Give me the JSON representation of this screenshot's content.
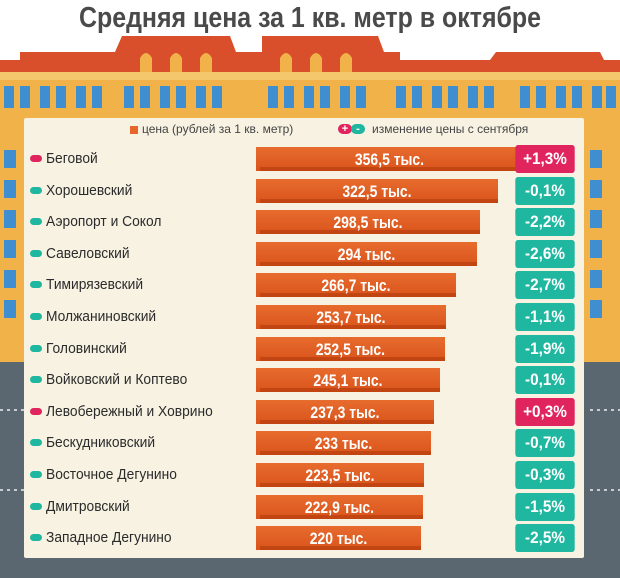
{
  "chart_data": {
    "type": "bar",
    "title": "Средняя цена за 1 кв. метр в октябре",
    "legend": {
      "price_label": "цена (рублей за 1 кв. метр)",
      "change_label": "изменение цены с сентября",
      "plus_symbol": "+",
      "minus_symbol": "-"
    },
    "categories": [
      "Беговой",
      "Хорошевский",
      "Аэропорт и Сокол",
      "Савеловский",
      "Тимирязевский",
      "Молжаниновский",
      "Головинский",
      "Войковский и Коптево",
      "Левобережный и Ховрино",
      "Бескудниковский",
      "Восточное Дегунино",
      "Дмитровский",
      "Западное Дегунино"
    ],
    "series": [
      {
        "name": "цена (рублей за 1 кв. метр)",
        "values": [
          356.5,
          322.5,
          298.5,
          294,
          266.7,
          253.7,
          252.5,
          245.1,
          237.3,
          233,
          223.5,
          222.9,
          220
        ],
        "labels": [
          "356,5",
          "322,5",
          "298,5",
          "294",
          "266,7",
          "253,7",
          "252,5",
          "245,1",
          "237,3",
          "233",
          "223,5",
          "222,9",
          "220"
        ],
        "unit": "тыс."
      },
      {
        "name": "изменение цены с сентября",
        "values": [
          1.3,
          -0.1,
          -2.2,
          -2.6,
          -2.7,
          -1.1,
          -1.9,
          -0.1,
          0.3,
          -0.7,
          -0.3,
          -1.5,
          -2.5
        ],
        "labels": [
          "+1,3%",
          "-0,1%",
          "-2,2%",
          "-2,6%",
          "-2,7%",
          "-1,1%",
          "-1,9%",
          "-0,1%",
          "+0,3%",
          "-0,7%",
          "-0,3%",
          "-1,5%",
          "-2,5%"
        ]
      }
    ],
    "colors": {
      "bar": "#e0601f",
      "increase": "#e0245e",
      "decrease": "#1fb7a0",
      "panel": "#f7f2e2",
      "building": "#f2b24a",
      "roof": "#d94f2c",
      "window": "#3f8fd0",
      "road": "#5b6770"
    }
  }
}
